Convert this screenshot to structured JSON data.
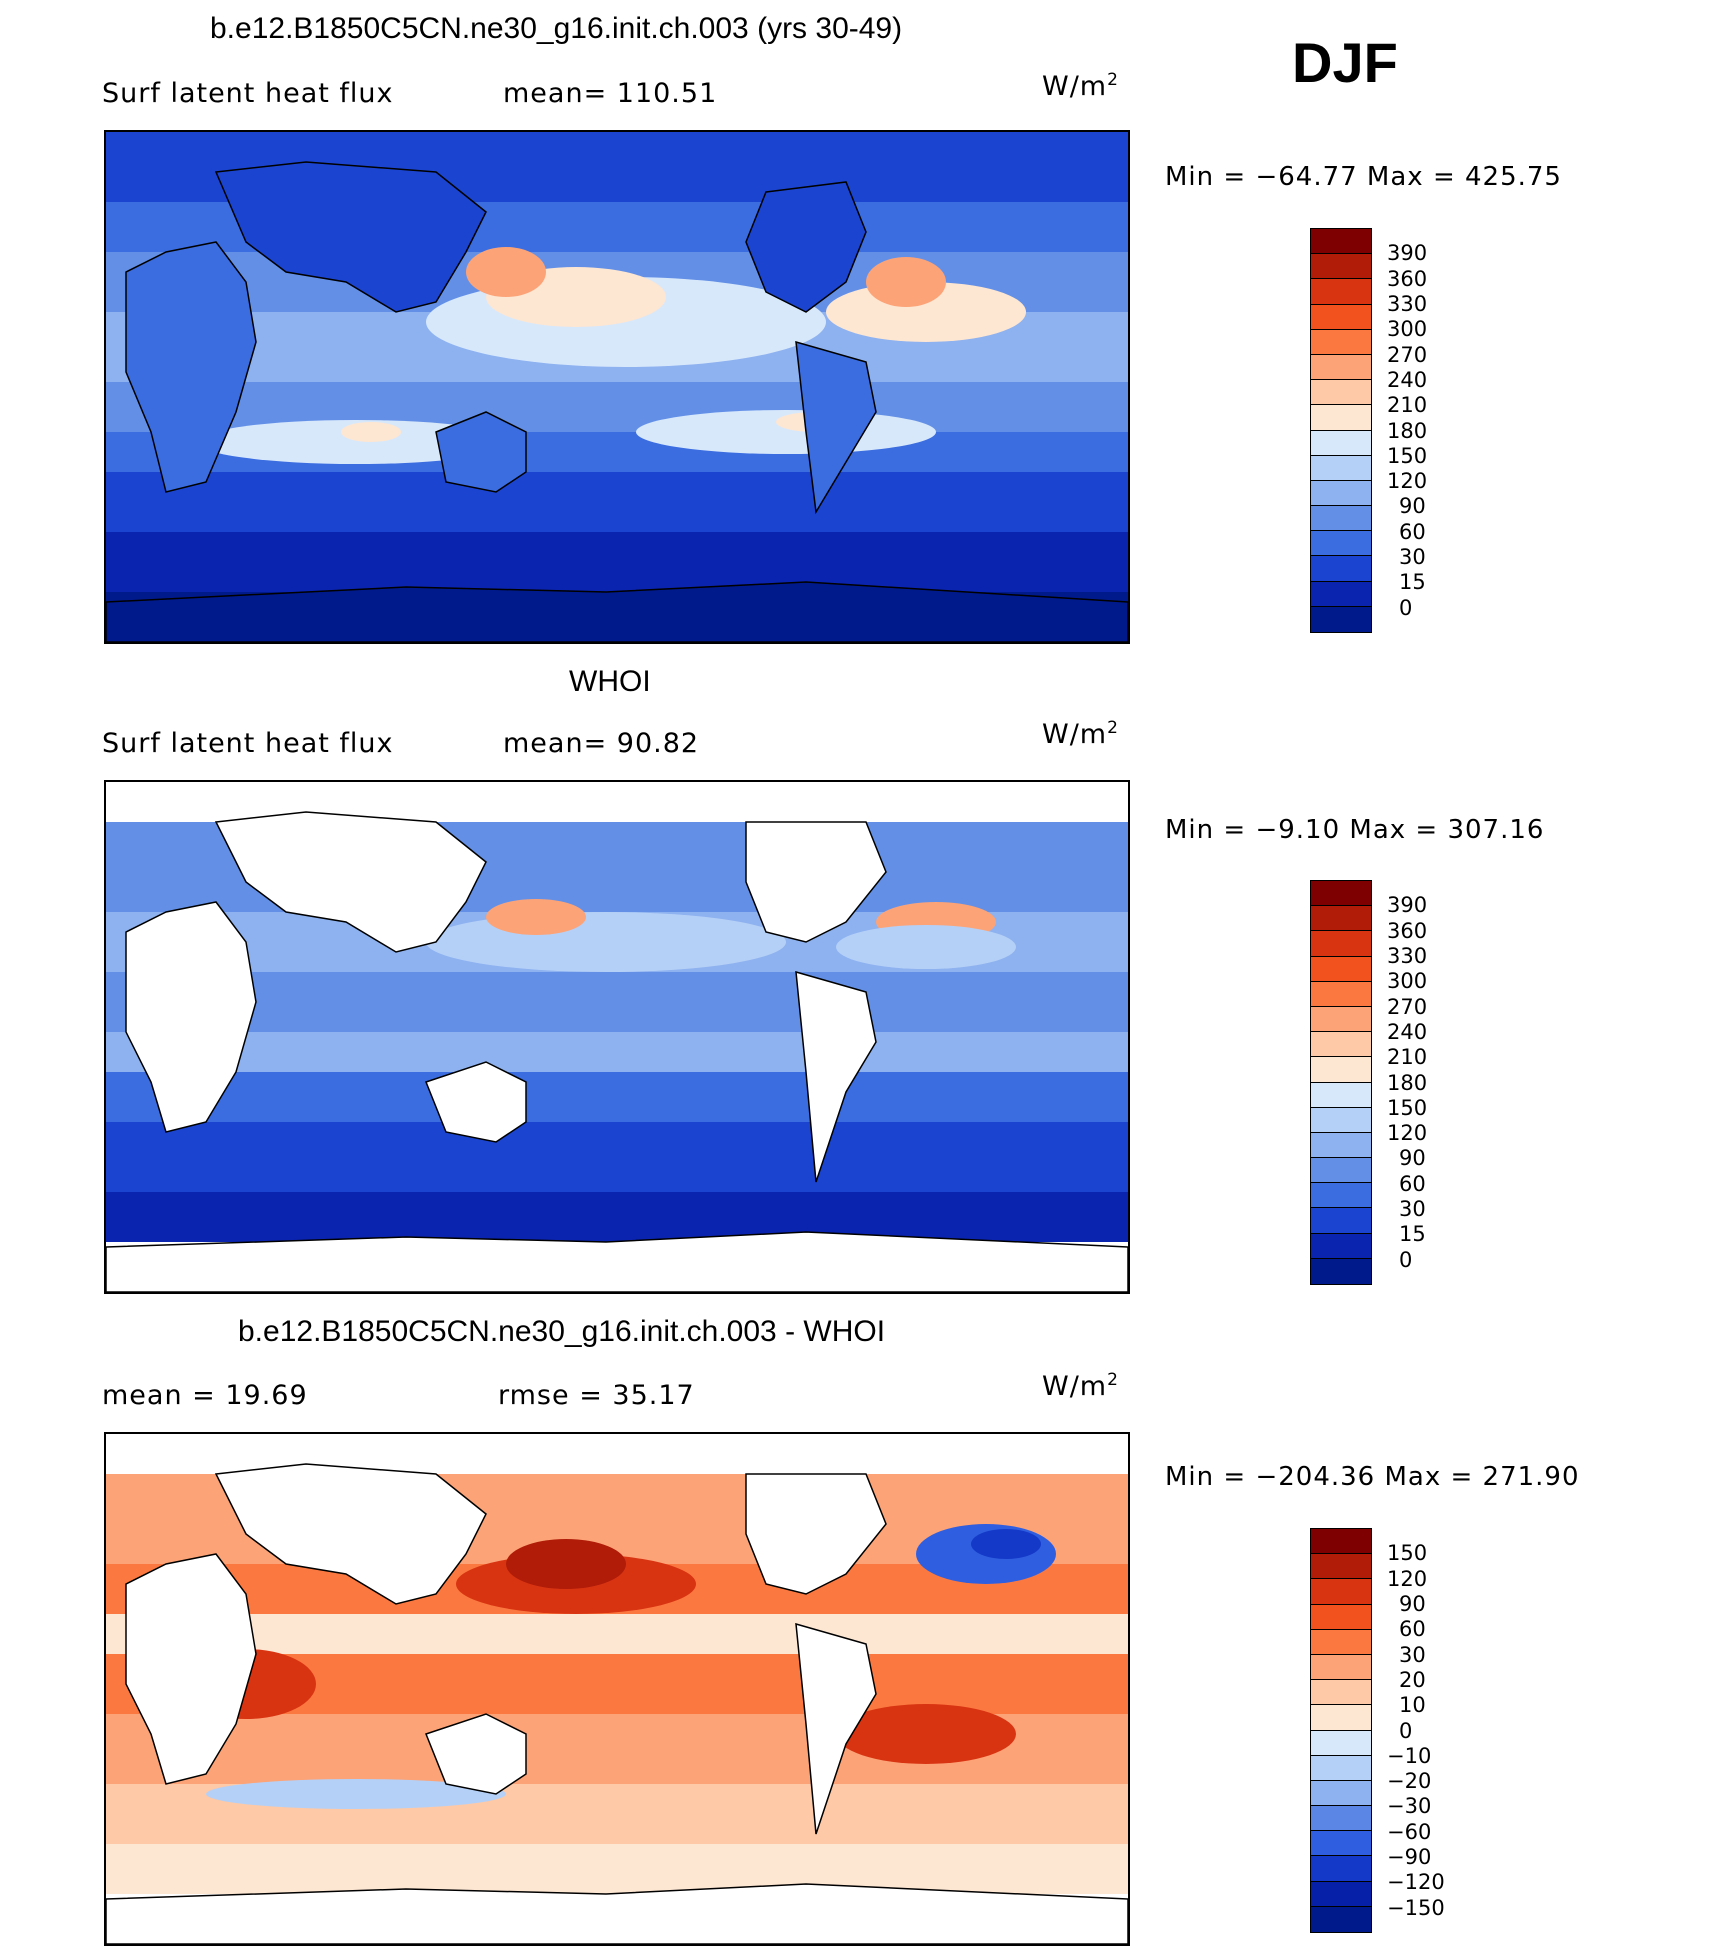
{
  "season": "DJF",
  "panels": [
    {
      "title": "b.e12.B1850C5CN.ne30_g16.init.ch.003 (yrs 30-49)",
      "variable": "Surf  latent  heat  flux",
      "stat1": "mean=  110.51",
      "stat2": "",
      "units_base": "W/m",
      "units_exp": "2",
      "minmax": "Min  =  −64.77  Max  =  425.75",
      "colorbar_levels": [
        "390",
        "360",
        "330",
        "300",
        "270",
        "240",
        "210",
        "180",
        "150",
        "120",
        "90",
        "60",
        "30",
        "15",
        "0"
      ],
      "colorbar_colors": [
        "#7f0000",
        "#b01c08",
        "#d93412",
        "#f2531e",
        "#fb7940",
        "#fca377",
        "#fdc9a6",
        "#fde6d2",
        "#d8e8fb",
        "#b5d0f7",
        "#8eb2f0",
        "#6390e6",
        "#3b6de0",
        "#1b45d0",
        "#0a24b0",
        "#001a8c"
      ]
    },
    {
      "title": "WHOI",
      "variable": "Surf  latent  heat  flux",
      "stat1": "mean=   90.82",
      "stat2": "",
      "units_base": "W/m",
      "units_exp": "2",
      "minmax": "Min  =   −9.10  Max  =  307.16",
      "colorbar_levels": [
        "390",
        "360",
        "330",
        "300",
        "270",
        "240",
        "210",
        "180",
        "150",
        "120",
        "90",
        "60",
        "30",
        "15",
        "0"
      ],
      "colorbar_colors": [
        "#7f0000",
        "#b01c08",
        "#d93412",
        "#f2531e",
        "#fb7940",
        "#fca377",
        "#fdc9a6",
        "#fde6d2",
        "#d8e8fb",
        "#b5d0f7",
        "#8eb2f0",
        "#6390e6",
        "#3b6de0",
        "#1b45d0",
        "#0a24b0",
        "#001a8c"
      ]
    },
    {
      "title": "b.e12.B1850C5CN.ne30_g16.init.ch.003 - WHOI",
      "variable": "",
      "stat1": "mean  =    19.69",
      "stat2": "rmse  =    35.17",
      "units_base": "W/m",
      "units_exp": "2",
      "minmax": "Min  =  −204.36  Max  =  271.90",
      "colorbar_levels": [
        "150",
        "120",
        "90",
        "60",
        "30",
        "20",
        "10",
        "0",
        "−10",
        "−20",
        "−30",
        "−60",
        "−90",
        "−120",
        "−150"
      ],
      "colorbar_colors": [
        "#7f0000",
        "#b01c08",
        "#d93412",
        "#f2531e",
        "#fb7940",
        "#fca377",
        "#fdc9a6",
        "#fde6d2",
        "#d8e8fb",
        "#b5d0f7",
        "#8eb2f0",
        "#5b86e6",
        "#2f5fe0",
        "#1439c8",
        "#0621a8",
        "#001a8c"
      ]
    }
  ]
}
